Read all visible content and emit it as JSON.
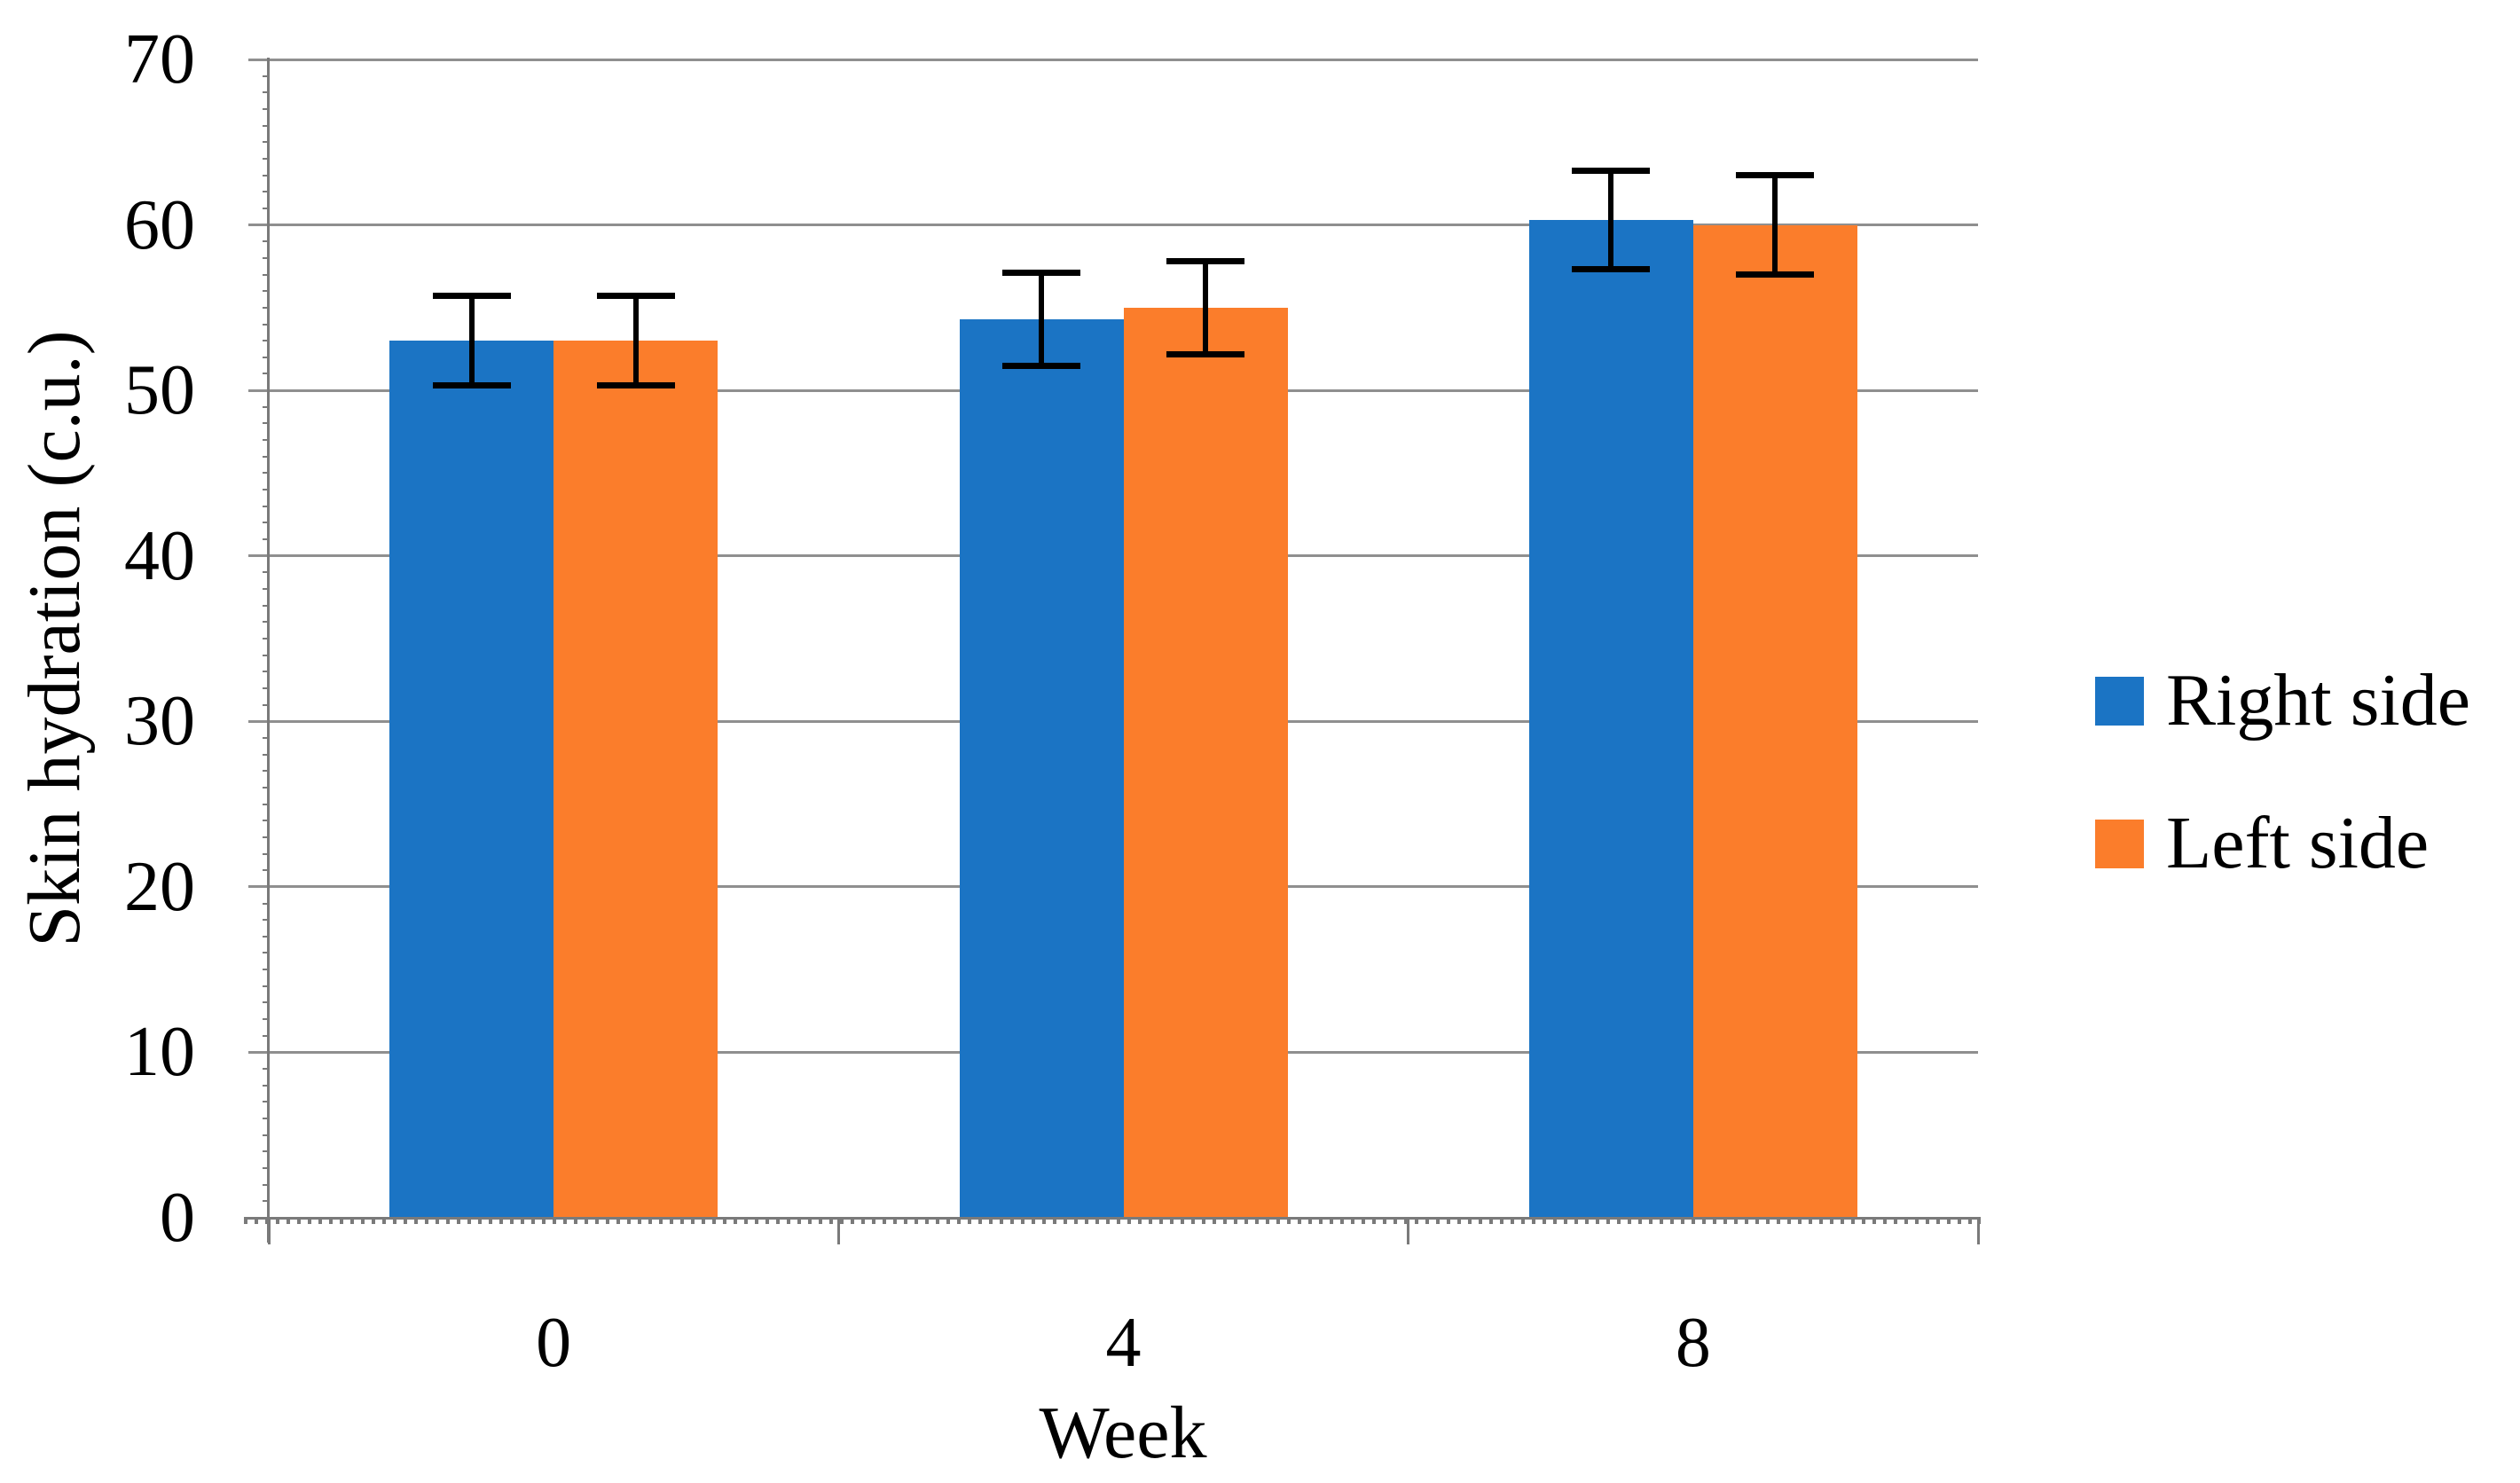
{
  "chart_data": {
    "type": "bar",
    "title": "",
    "xlabel": "Week",
    "ylabel": "Skin hydration (c.u.)",
    "categories": [
      "0",
      "4",
      "8"
    ],
    "series": [
      {
        "name": "Right side",
        "color": "#1B74C4",
        "values": [
          53,
          54.3,
          60.3
        ],
        "errors": [
          2.7,
          2.8,
          3.0
        ]
      },
      {
        "name": "Left side",
        "color": "#FB7D2B",
        "values": [
          53,
          55,
          60
        ],
        "errors": [
          2.7,
          2.8,
          3.0
        ]
      }
    ],
    "ylim": [
      0,
      70
    ],
    "yticks": [
      0,
      10,
      20,
      30,
      40,
      50,
      60,
      70
    ],
    "grid": "horizontal",
    "grid_color": "#8F8F8F",
    "axis_color": "#7A7A7A",
    "error_bar_color": "#000000",
    "legend_position": "right",
    "legend": [
      "Right side",
      "Left side"
    ]
  }
}
